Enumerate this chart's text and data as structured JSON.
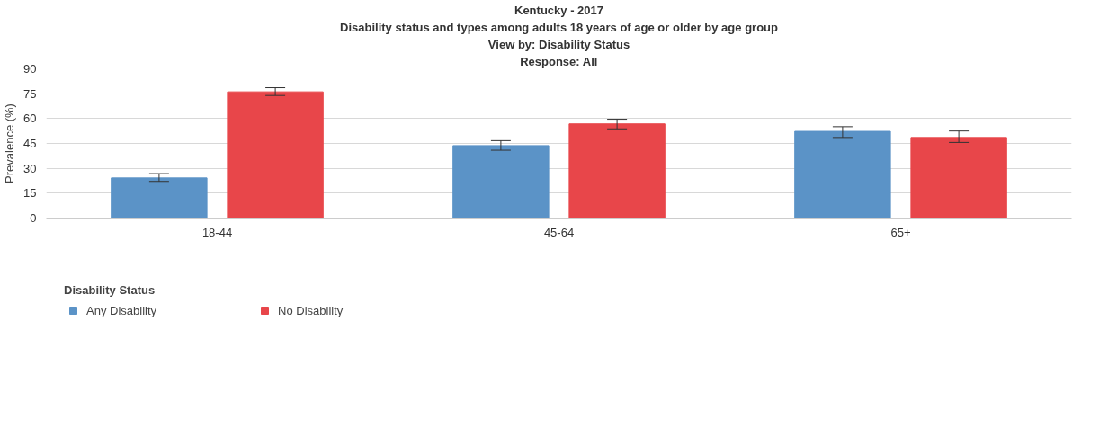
{
  "chart_data": {
    "type": "bar",
    "title": "Kentucky - 2017",
    "subtitle": "Disability status and types among adults 18 years of age or older by age group",
    "annotations": [
      "View by: Disability Status",
      "Response: All"
    ],
    "ylabel": "Prevalence (%)",
    "legend_title": "Disability Status",
    "categories": [
      "18-44",
      "45-64",
      "65+"
    ],
    "series": [
      {
        "name": "Any Disability",
        "color": "#5b93c7",
        "values": [
          24.2,
          43.7,
          52.3
        ],
        "errors": [
          [
            22.1,
            26.8
          ],
          [
            40.9,
            46.7
          ],
          [
            48.6,
            55.1
          ]
        ]
      },
      {
        "name": "No Disability",
        "color": "#e8464a",
        "values": [
          76.1,
          56.8,
          48.6
        ],
        "errors": [
          [
            73.9,
            78.6
          ],
          [
            53.8,
            59.6
          ],
          [
            45.6,
            52.5
          ]
        ]
      }
    ],
    "ylim": [
      0,
      90
    ],
    "yticks": [
      0,
      15,
      30,
      45,
      60,
      75,
      90
    ],
    "grid": "y",
    "legend": "bottom left"
  }
}
